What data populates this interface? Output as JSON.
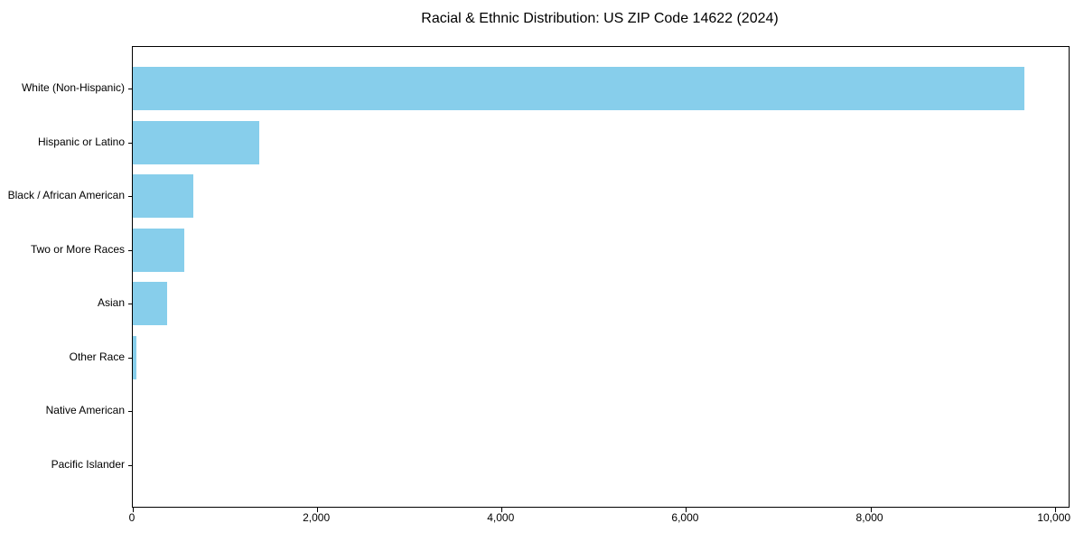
{
  "colors": {
    "bar": "#87CEEB",
    "axis": "#000000",
    "text": "#000000",
    "background": "#FFFFFF"
  },
  "chart_data": {
    "type": "bar",
    "orientation": "horizontal",
    "title": "Racial & Ethnic Distribution: US ZIP Code 14622 (2024)",
    "xlabel": "",
    "ylabel": "",
    "categories": [
      "White (Non-Hispanic)",
      "Hispanic or Latino",
      "Black / African American",
      "Two or More Races",
      "Asian",
      "Other Race",
      "Native American",
      "Pacific Islander"
    ],
    "values": [
      9670,
      1370,
      660,
      560,
      370,
      40,
      0,
      0
    ],
    "xlim": [
      0,
      10150
    ],
    "xticks": [
      0,
      2000,
      4000,
      6000,
      8000,
      10000
    ],
    "xtick_labels": [
      "0",
      "2,000",
      "4,000",
      "6,000",
      "8,000",
      "10,000"
    ],
    "grid": false,
    "legend": null,
    "bar_color": "#87CEEB"
  }
}
